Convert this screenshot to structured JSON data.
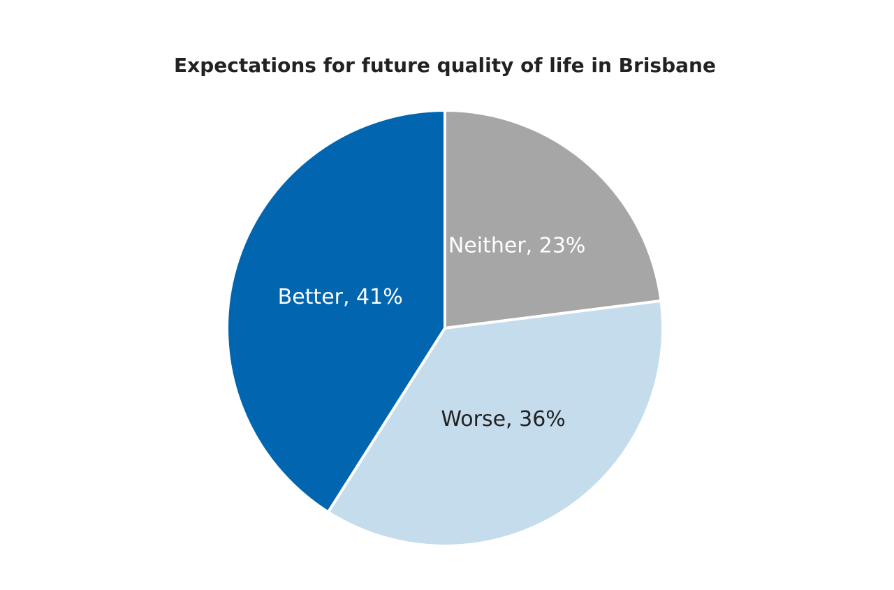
{
  "chart_data": {
    "type": "pie",
    "title": "Expectations for future quality of life in Brisbane",
    "values": [
      23,
      36,
      41
    ],
    "value_labels": [
      "Neither, 23%",
      "Worse, 36%",
      "Better, 41%"
    ],
    "colors": [
      "#a6a6a6",
      "#c5dcec",
      "#0265b0"
    ],
    "label_colors": [
      "#ffffff",
      "#222222",
      "#ffffff"
    ]
  }
}
